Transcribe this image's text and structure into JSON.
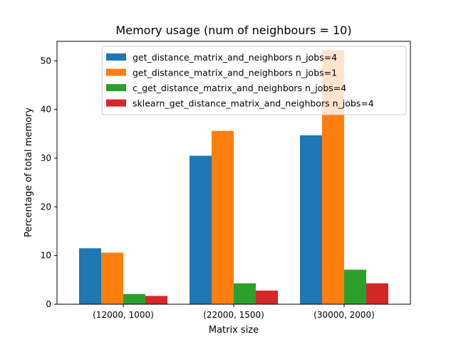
{
  "chart_data": {
    "type": "bar",
    "title": "Memory usage (num of neighbours = 10)",
    "xlabel": "Matrix size",
    "ylabel": "Percentage of total memory",
    "categories": [
      "(12000, 1000)",
      "(22000, 1500)",
      "(30000, 2000)"
    ],
    "ylim": [
      0,
      54
    ],
    "yticks": [
      0,
      10,
      20,
      30,
      40,
      50
    ],
    "legend_position": "top-right",
    "grid": false,
    "series": [
      {
        "name": "get_distance_matrix_and_neighbors n_jobs=4",
        "color": "#1f77b4",
        "values": [
          11.5,
          30.5,
          34.7
        ]
      },
      {
        "name": "get_distance_matrix_and_neighbors n_jobs=1",
        "color": "#ff7f0e",
        "values": [
          10.6,
          35.6,
          52.2
        ]
      },
      {
        "name": "c_get_distance_matrix_and_neighbors n_jobs=4",
        "color": "#2ca02c",
        "values": [
          2.1,
          4.3,
          7.1
        ]
      },
      {
        "name": "sklearn_get_distance_matrix_and_neighbors n_jobs=4",
        "color": "#d62728",
        "values": [
          1.7,
          2.8,
          4.3
        ]
      }
    ]
  }
}
